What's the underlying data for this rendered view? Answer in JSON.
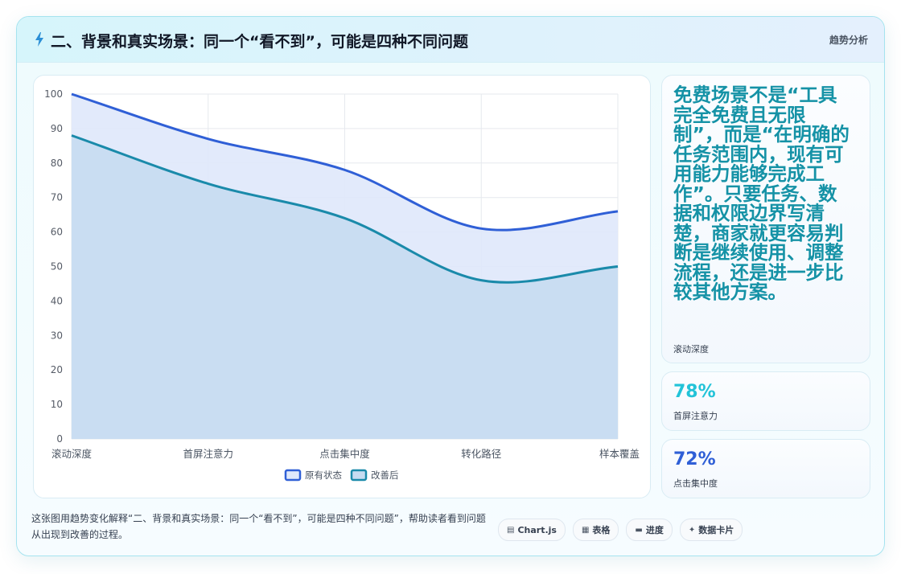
{
  "header": {
    "title": "二、背景和真实场景：同一个“看不到”，可能是四种不同问题",
    "tag": "趋势分析",
    "icon": "lightning-icon"
  },
  "chart_data": {
    "type": "area",
    "categories": [
      "滚动深度",
      "首屏注意力",
      "点击集中度",
      "转化路径",
      "样本覆盖"
    ],
    "series": [
      {
        "name": "原有状态",
        "values": [
          100,
          87,
          78,
          61,
          66
        ],
        "color": "#2f5fd6",
        "fill": "#dfe8fb"
      },
      {
        "name": "改善后",
        "values": [
          88,
          74,
          64,
          46,
          50
        ],
        "color": "#1a8aaa",
        "fill": "#c6dcf1"
      }
    ],
    "ylim": [
      0,
      100
    ],
    "yticks": [
      0,
      10,
      20,
      30,
      40,
      50,
      60,
      70,
      80,
      90,
      100
    ],
    "grid": true,
    "legend": "bottom"
  },
  "side": {
    "note_text": "免费场景不是“工具完全免费且无限制”，而是“在明确的任务范围内，现有可用能力能够完成工作”。只要任务、数据和权限边界写清楚，商家就更容易判断是继续使用、调整流程，还是进一步比较其他方案。",
    "note_label": "滚动深度",
    "stat1_value": "78%",
    "stat1_label": "首屏注意力",
    "stat1_color": "#22c3d8",
    "stat2_value": "72%",
    "stat2_label": "点击集中度",
    "stat2_color": "#2f5fd6"
  },
  "footer": {
    "text": "这张图用趋势变化解释“二、背景和真实场景：同一个“看不到”，可能是四种不同问题”，帮助读者看到问题从出现到改善的过程。",
    "pills": [
      {
        "icon": "▤",
        "icon_name": "chart-icon",
        "label": "Chart.js"
      },
      {
        "icon": "▦",
        "icon_name": "table-icon",
        "label": "表格"
      },
      {
        "icon": "▬",
        "icon_name": "progress-icon",
        "label": "进度"
      },
      {
        "icon": "✦",
        "icon_name": "sparkle-icon",
        "label": "数据卡片"
      }
    ]
  }
}
